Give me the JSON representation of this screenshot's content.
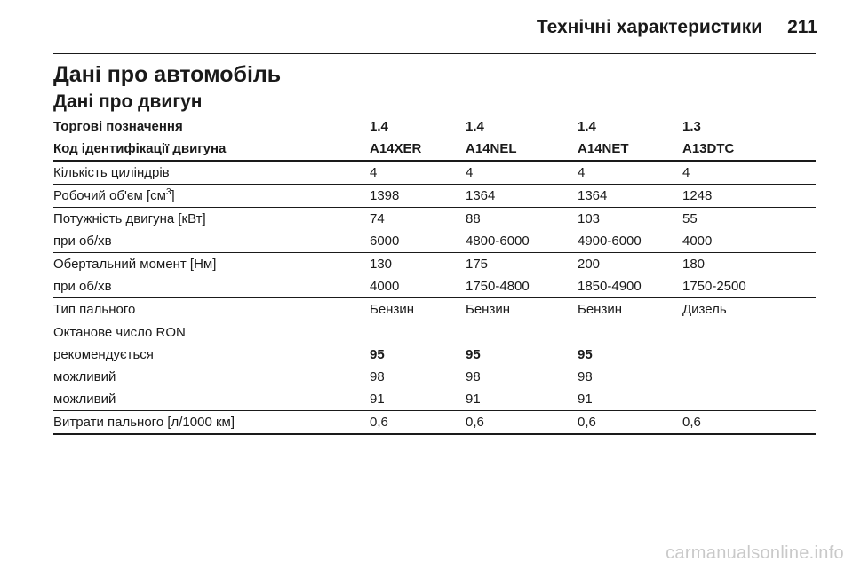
{
  "header": {
    "section_title": "Технічні характеристики",
    "page_number": "211"
  },
  "headings": {
    "h1": "Дані про автомобіль",
    "h2": "Дані про двигун"
  },
  "table": {
    "trade_label": "Торгові позначення",
    "trade": [
      "1.4",
      "1.4",
      "1.4",
      "1.3"
    ],
    "code_label": "Код ідентифікації двигуна",
    "codes": [
      "A14XER",
      "A14NEL",
      "A14NET",
      "A13DTC"
    ],
    "cylinders": {
      "label": "Кількість циліндрів",
      "values": [
        "4",
        "4",
        "4",
        "4"
      ]
    },
    "displacement": {
      "label": "Робочий об'єм [см",
      "sup": "3",
      "label_end": "]",
      "values": [
        "1398",
        "1364",
        "1364",
        "1248"
      ]
    },
    "power": {
      "label": "Потужність двигуна [кВт]",
      "values": [
        "74",
        "88",
        "103",
        "55"
      ]
    },
    "power_rpm": {
      "label": "при об/хв",
      "values": [
        "6000",
        "4800-6000",
        "4900-6000",
        "4000"
      ]
    },
    "torque": {
      "label": "Обертальний момент [Нм]",
      "values": [
        "130",
        "175",
        "200",
        "180"
      ]
    },
    "torque_rpm": {
      "label": "при об/хв",
      "values": [
        "4000",
        "1750-4800",
        "1850-4900",
        "1750-2500"
      ]
    },
    "fuel_type": {
      "label": "Тип пального",
      "values": [
        "Бензин",
        "Бензин",
        "Бензин",
        "Дизель"
      ]
    },
    "octane": {
      "label": "Октанове число RON"
    },
    "octane_recommended": {
      "label": "рекомендується",
      "values": [
        "95",
        "95",
        "95",
        ""
      ]
    },
    "octane_possible_1": {
      "label": "можливий",
      "values": [
        "98",
        "98",
        "98",
        ""
      ]
    },
    "octane_possible_2": {
      "label": "можливий",
      "values": [
        "91",
        "91",
        "91",
        ""
      ]
    },
    "consumption": {
      "label": "Витрати пального [л/1000 км]",
      "values": [
        "0,6",
        "0,6",
        "0,6",
        "0,6"
      ]
    }
  },
  "watermark": "carmanualsonline.info"
}
